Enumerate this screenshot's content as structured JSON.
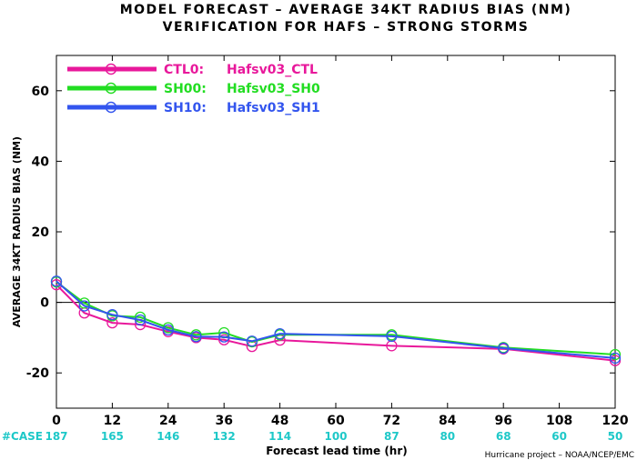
{
  "chart_data": {
    "type": "line",
    "title_line1": "MODEL FORECAST – AVERAGE 34KT RADIUS BIAS (NM)",
    "title_line2": "VERIFICATION FOR HAFS – STRONG STORMS",
    "xlabel": "Forecast lead time (hr)",
    "ylabel": "AVERAGE 34KT RADIUS BIAS (NM)",
    "xlim": [
      0,
      120
    ],
    "ylim": [
      -30,
      70
    ],
    "xticks": [
      0,
      12,
      24,
      36,
      48,
      60,
      72,
      84,
      96,
      108,
      120
    ],
    "yticks": [
      -20,
      0,
      20,
      40,
      60
    ],
    "zero_line": true,
    "legend_position": "top-left",
    "case_label": "#CASE",
    "case_counts": [
      {
        "x": 0,
        "n": "187"
      },
      {
        "x": 12,
        "n": "165"
      },
      {
        "x": 24,
        "n": "146"
      },
      {
        "x": 36,
        "n": "132"
      },
      {
        "x": 48,
        "n": "114"
      },
      {
        "x": 60,
        "n": "100"
      },
      {
        "x": 72,
        "n": "87"
      },
      {
        "x": 84,
        "n": "80"
      },
      {
        "x": 96,
        "n": "68"
      },
      {
        "x": 108,
        "n": "60"
      },
      {
        "x": 120,
        "n": "50"
      }
    ],
    "credit": "Hurricane project – NOAA/NCEP/EMC",
    "series": [
      {
        "name": "CTL0:",
        "label": "Hafsv03_CTL",
        "color": "#e8189b",
        "points": [
          [
            0,
            5
          ],
          [
            6,
            -3
          ],
          [
            12,
            -5.8
          ],
          [
            18,
            -6.3
          ],
          [
            24,
            -8.3
          ],
          [
            30,
            -10
          ],
          [
            36,
            -10.6
          ],
          [
            42,
            -12.5
          ],
          [
            48,
            -10.7
          ],
          [
            72,
            -12.3
          ],
          [
            96,
            -13.2
          ],
          [
            120,
            -16.5
          ]
        ]
      },
      {
        "name": "SH00:",
        "label": "Hafsv03_SH0",
        "color": "#22dd22",
        "points": [
          [
            0,
            5.8
          ],
          [
            6,
            -0.2
          ],
          [
            12,
            -3.8
          ],
          [
            18,
            -4.2
          ],
          [
            24,
            -7.2
          ],
          [
            30,
            -9.2
          ],
          [
            36,
            -8.6
          ],
          [
            42,
            -11.2
          ],
          [
            48,
            -9.2
          ],
          [
            72,
            -9.2
          ],
          [
            96,
            -12.8
          ],
          [
            120,
            -14.8
          ]
        ]
      },
      {
        "name": "SH10:",
        "label": "Hafsv03_SH1",
        "color": "#3355ee",
        "points": [
          [
            0,
            6
          ],
          [
            6,
            -1
          ],
          [
            12,
            -3.5
          ],
          [
            18,
            -5
          ],
          [
            24,
            -7.8
          ],
          [
            30,
            -9.7
          ],
          [
            36,
            -9.8
          ],
          [
            42,
            -11
          ],
          [
            48,
            -8.9
          ],
          [
            72,
            -9.6
          ],
          [
            96,
            -13
          ],
          [
            120,
            -15.8
          ]
        ]
      }
    ]
  }
}
